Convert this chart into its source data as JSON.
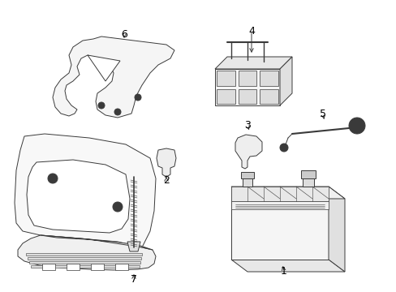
{
  "background_color": "#ffffff",
  "line_color": "#3a3a3a",
  "label_color": "#000000",
  "fig_width": 4.89,
  "fig_height": 3.6,
  "dpi": 100,
  "label_fontsize": 9,
  "lw": 0.7
}
